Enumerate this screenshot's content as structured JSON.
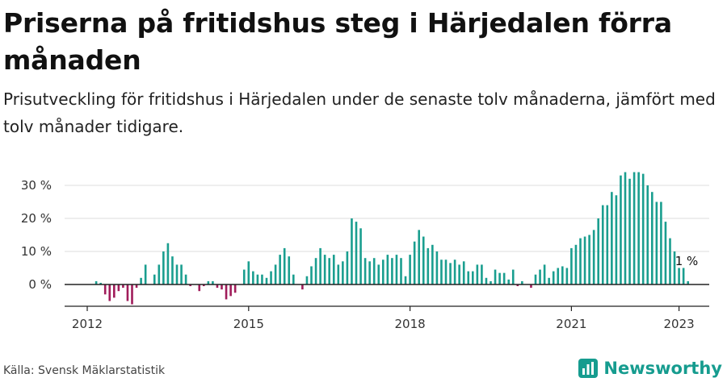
{
  "title": "Priserna på fritidshus steg i Härjedalen förra månaden",
  "subtitle": "Prisutveckling för fritidshus i Härjedalen under de senaste tolv månaderna, jämfört med tolv månader tidigare.",
  "source": "Källa: Svensk Mäklarstatistik",
  "brand": {
    "name": "Newsworthy",
    "icon": "newsworthy-logo-icon"
  },
  "colors": {
    "positive": "#1a9e8f",
    "negative": "#a01c5a",
    "grid": "#dddddd",
    "axis": "#222222"
  },
  "chart_data": {
    "type": "bar",
    "start": "2012-01",
    "x_ticks": [
      {
        "label": "2012",
        "index": 0
      },
      {
        "label": "2015",
        "index": 36
      },
      {
        "label": "2018",
        "index": 72
      },
      {
        "label": "2021",
        "index": 108
      },
      {
        "label": "2023",
        "index": 132
      }
    ],
    "y_ticks": [
      {
        "value": 0,
        "label": "0 %"
      },
      {
        "value": 10,
        "label": "10 %"
      },
      {
        "value": 20,
        "label": "20 %"
      },
      {
        "value": 30,
        "label": "30 %"
      }
    ],
    "ylim": [
      -6,
      35
    ],
    "last_label": "1 %",
    "values": [
      0,
      0,
      1,
      0.5,
      -3,
      -5,
      -4,
      -2,
      -1,
      -5,
      -6,
      -1,
      2,
      6,
      0,
      3,
      6,
      10,
      12.5,
      8.5,
      6,
      6,
      3,
      -0.5,
      0,
      -2,
      -0.5,
      1,
      1,
      -1,
      -1.5,
      -4.5,
      -3.5,
      -2.5,
      0,
      4.5,
      7,
      4,
      3,
      3,
      2,
      4,
      6,
      9,
      11,
      8.5,
      3,
      0,
      -1.5,
      2.5,
      5.5,
      8,
      11,
      9,
      8,
      9,
      6,
      7,
      10,
      20,
      19,
      17,
      8,
      7,
      8,
      6,
      7.5,
      9,
      8,
      9,
      8,
      2.5,
      9,
      13,
      16.5,
      14.5,
      11,
      12,
      10,
      7.5,
      7.5,
      6.5,
      7.5,
      6,
      7,
      4,
      4,
      6,
      6,
      2,
      1,
      4.5,
      3.5,
      3.5,
      1.5,
      4.5,
      -0.5,
      1,
      0,
      -1,
      3,
      4.5,
      6,
      2,
      4,
      5,
      5.5,
      5,
      11,
      12,
      14,
      14.5,
      15,
      16.5,
      20,
      24,
      24,
      28,
      27,
      33,
      34,
      32,
      34,
      34,
      33.5,
      30,
      28,
      25,
      25,
      19,
      14,
      10,
      5,
      5,
      1
    ]
  }
}
